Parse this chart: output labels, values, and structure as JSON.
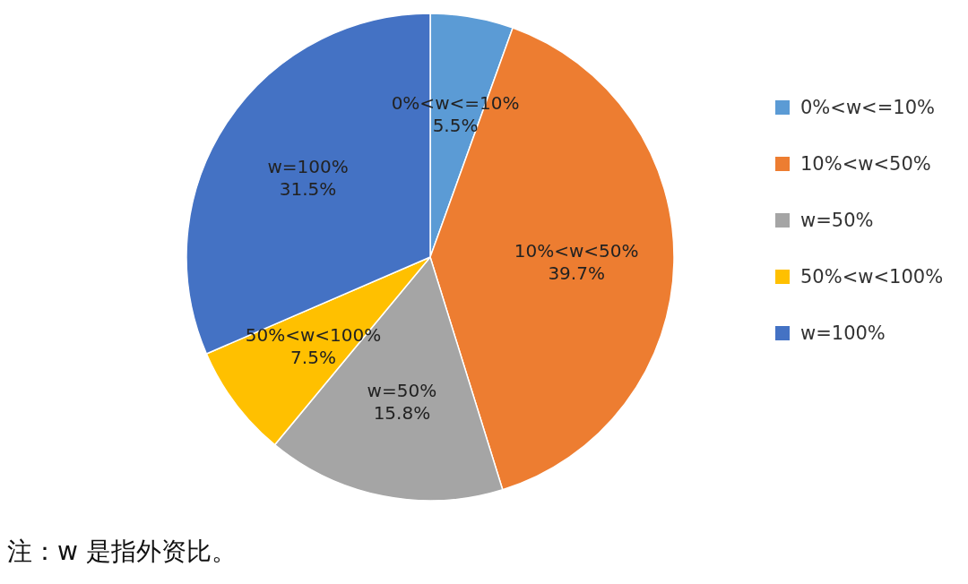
{
  "chart_data": {
    "type": "pie",
    "categories": [
      "0%<w<=10%",
      "10%<w<50%",
      "w=50%",
      "50%<w<100%",
      "w=100%"
    ],
    "values": [
      5.5,
      39.7,
      15.8,
      7.5,
      31.5
    ],
    "colors": [
      "#5b9bd5",
      "#ed7d31",
      "#a5a5a5",
      "#ffc000",
      "#4472c4"
    ],
    "value_labels": [
      "5.5%",
      "39.7%",
      "15.8%",
      "7.5%",
      "31.5%"
    ],
    "legend": "right",
    "annotations": [
      "注：w 是指外资比。"
    ]
  }
}
